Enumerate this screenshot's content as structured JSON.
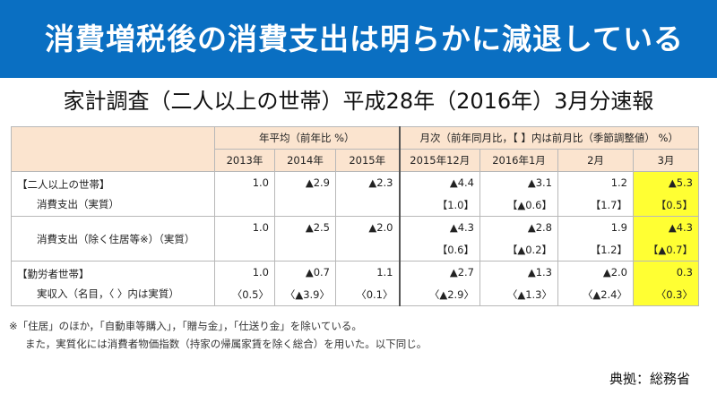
{
  "banner": {
    "title": "消費増税後の消費支出は明らかに減退している"
  },
  "subtitle": "家計調査（二人以上の世帯）平成28年（2016年）3月分速報",
  "table": {
    "group_headers": {
      "annual": "年平均（前年比 %）",
      "monthly": "月次（前年同月比，【 】内は前月比（季節調整値） %）"
    },
    "columns": [
      "2013年",
      "2014年",
      "2015年",
      "2015年12月",
      "2016年1月",
      "2月",
      "3月"
    ],
    "rows": [
      {
        "label1": "【二人以上の世帯】",
        "label2": "消費支出（実質）",
        "line1": [
          "1.0",
          "▲2.9",
          "▲2.3",
          "▲4.4",
          "▲3.1",
          "1.2",
          "▲5.3"
        ],
        "line2": [
          "",
          "",
          "",
          "【1.0】",
          "【▲0.6】",
          "【1.7】",
          "【0.5】"
        ]
      },
      {
        "label1": "",
        "label2": "消費支出（除く住居等※）（実質）",
        "line1": [
          "1.0",
          "▲2.5",
          "▲2.0",
          "▲4.3",
          "▲2.8",
          "1.9",
          "▲4.3"
        ],
        "line2": [
          "",
          "",
          "",
          "【0.6】",
          "【▲0.2】",
          "【1.2】",
          "【▲0.7】"
        ]
      },
      {
        "label1": "【勤労者世帯】",
        "label2": "実収入（名目，〈 〉内は実質）",
        "line1": [
          "1.0",
          "▲0.7",
          "1.1",
          "▲2.7",
          "▲1.3",
          "▲2.0",
          "0.3"
        ],
        "line2": [
          "〈0.5〉",
          "〈▲3.9〉",
          "〈0.1〉",
          "〈▲2.9〉",
          "〈▲1.3〉",
          "〈▲2.4〉",
          "〈0.3〉"
        ]
      }
    ]
  },
  "notes": {
    "line1": "※「住居」のほか，「自動車等購入」，「贈与金」，「仕送り金」を除いている。",
    "line2": "また，実質化には消費者物価指数（持家の帰属家賃を除く総合）を用いた。以下同じ。"
  },
  "source": "典拠：総務省",
  "colors": {
    "banner": "#0a6fc2",
    "header": "#fbe4cf",
    "highlight": "#ffff33"
  }
}
